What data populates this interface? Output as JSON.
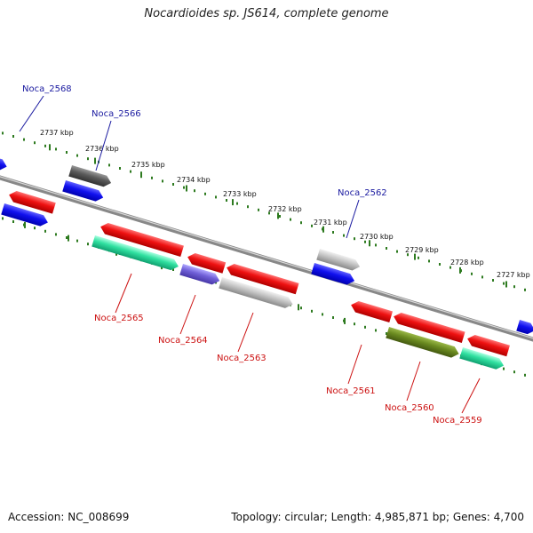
{
  "title": "Nocardioides sp. JS614, complete genome",
  "footer": {
    "accession": "Accession: NC_008699",
    "summary": "Topology: circular; Length: 4,985,871 bp; Genes: 4,700"
  },
  "colors": {
    "backbone": "#888888",
    "tick": "#2d7a1f",
    "label_forward": "#1a1aa0",
    "label_reverse": "#cc1111",
    "red": "#e01010",
    "blue": "#1010e0",
    "gray": "#b8b8b8",
    "darkgray": "#606060",
    "cyan": "#30e0a0",
    "purple": "#7060d8",
    "olive": "#6a8a20"
  },
  "ticks": [
    {
      "label": "2737 kbp"
    },
    {
      "label": "2736 kbp"
    },
    {
      "label": "2735 kbp"
    },
    {
      "label": "2734 kbp"
    },
    {
      "label": "2733 kbp"
    },
    {
      "label": "2732 kbp"
    },
    {
      "label": "2731 kbp"
    },
    {
      "label": "2730 kbp"
    },
    {
      "label": "2729 kbp"
    },
    {
      "label": "2728 kbp"
    },
    {
      "label": "2727 kbp"
    }
  ],
  "gene_labels": [
    {
      "name": "Noca_2568",
      "strand": "forward"
    },
    {
      "name": "Noca_2566",
      "strand": "forward"
    },
    {
      "name": "Noca_2562",
      "strand": "forward"
    },
    {
      "name": "Noca_2565",
      "strand": "reverse"
    },
    {
      "name": "Noca_2564",
      "strand": "reverse"
    },
    {
      "name": "Noca_2563",
      "strand": "reverse"
    },
    {
      "name": "Noca_2561",
      "strand": "reverse"
    },
    {
      "name": "Noca_2560",
      "strand": "reverse"
    },
    {
      "name": "Noca_2559",
      "strand": "reverse"
    }
  ]
}
